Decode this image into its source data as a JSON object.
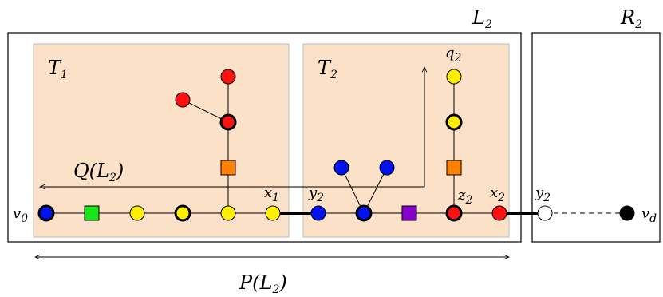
{
  "labels": {
    "L2": {
      "base": "L",
      "sub": "2"
    },
    "R2": {
      "base": "R",
      "sub": "2"
    },
    "T1": {
      "base": "T",
      "sub": "1"
    },
    "T2": {
      "base": "T",
      "sub": "2"
    },
    "Q": {
      "base": "Q(L",
      "sub": "2",
      "tail": ")"
    },
    "P": {
      "base": "P(L",
      "sub": "2",
      "tail": ")"
    },
    "v0": {
      "base": "v",
      "sub": "0"
    },
    "vd": {
      "base": "v",
      "sub": "d"
    },
    "x1": {
      "base": "x",
      "sub": "1"
    },
    "x2": {
      "base": "x",
      "sub": "2"
    },
    "y2a": {
      "base": "y",
      "sub": "2"
    },
    "y2b": {
      "base": "y",
      "sub": "2"
    },
    "z2": {
      "base": "z",
      "sub": "2"
    },
    "q2": {
      "base": "q",
      "sub": "2"
    }
  },
  "colors": {
    "tree_fill": "#fce1c9",
    "blue": "#0012ee",
    "green": "#19e619",
    "yellow": "#ffee00",
    "red": "#ff1111",
    "orange": "#ff8000",
    "purple": "#8800cc",
    "black": "#000000",
    "white": "#ffffff"
  }
}
